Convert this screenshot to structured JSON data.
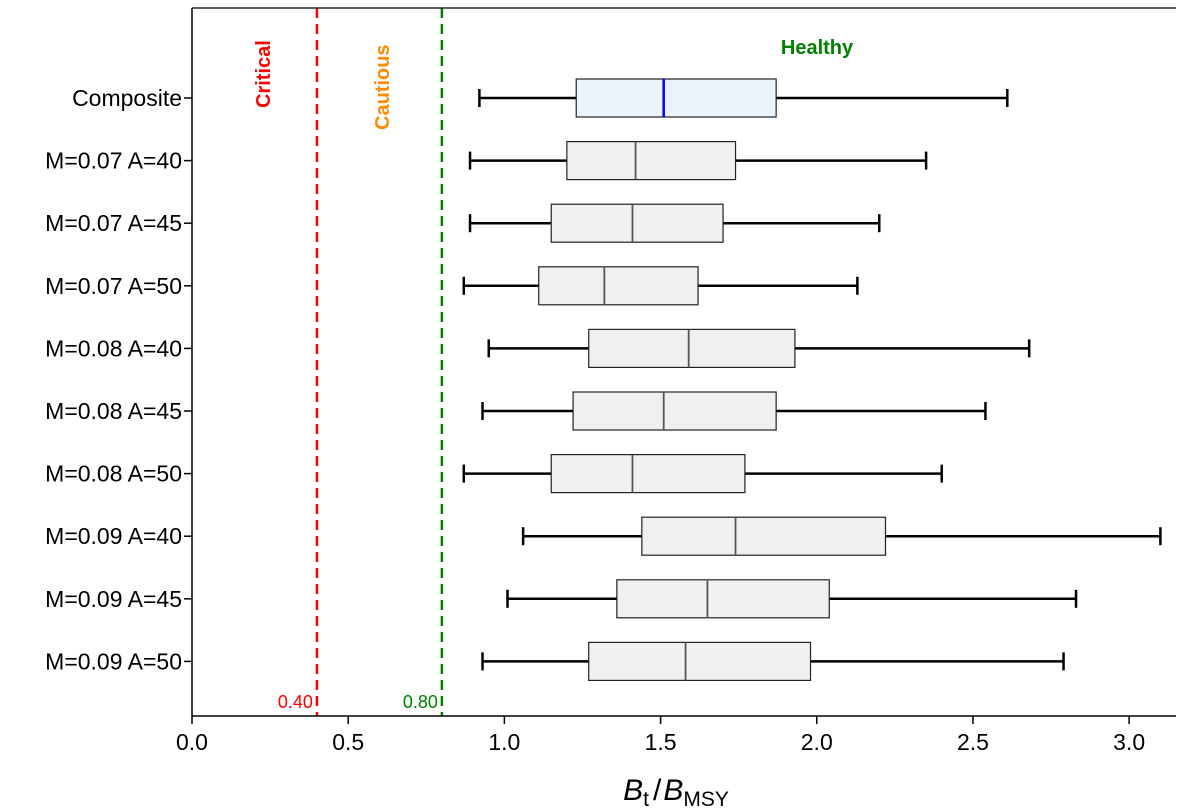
{
  "chart_data": {
    "type": "boxplot",
    "orientation": "horizontal",
    "xlabel_main": "B",
    "xlabel_t": "t",
    "xlabel_slash": "/",
    "xlabel_main2": "B",
    "xlabel_sub": "MSY",
    "xlim": [
      0.0,
      3.15
    ],
    "xticks": [
      "0.0",
      "0.5",
      "1.0",
      "1.5",
      "2.0",
      "2.5",
      "3.0"
    ],
    "xtick_values": [
      0.0,
      0.5,
      1.0,
      1.5,
      2.0,
      2.5,
      3.0
    ],
    "zones": [
      {
        "label": "Critical",
        "color": "#ff0000"
      },
      {
        "label": "Cautious",
        "color": "#ff8c00"
      },
      {
        "label": "Healthy",
        "color": "#008000"
      }
    ],
    "reference_lines": [
      {
        "value": 0.4,
        "label": "0.40",
        "color": "#ff0000"
      },
      {
        "value": 0.8,
        "label": "0.80",
        "color": "#008000"
      }
    ],
    "series": [
      {
        "category": "Composite",
        "whisker_low": 0.92,
        "q1": 1.23,
        "median": 1.51,
        "q3": 1.87,
        "whisker_high": 2.61,
        "fill": "#eaf4fd",
        "median_color": "#0000ff"
      },
      {
        "category": "M=0.07 A=40",
        "whisker_low": 0.89,
        "q1": 1.2,
        "median": 1.42,
        "q3": 1.74,
        "whisker_high": 2.35,
        "fill": "#f0f0f0",
        "median_color": "#555555"
      },
      {
        "category": "M=0.07 A=45",
        "whisker_low": 0.89,
        "q1": 1.15,
        "median": 1.41,
        "q3": 1.7,
        "whisker_high": 2.2,
        "fill": "#f0f0f0",
        "median_color": "#555555"
      },
      {
        "category": "M=0.07 A=50",
        "whisker_low": 0.87,
        "q1": 1.11,
        "median": 1.32,
        "q3": 1.62,
        "whisker_high": 2.13,
        "fill": "#f0f0f0",
        "median_color": "#555555"
      },
      {
        "category": "M=0.08 A=40",
        "whisker_low": 0.95,
        "q1": 1.27,
        "median": 1.59,
        "q3": 1.93,
        "whisker_high": 2.68,
        "fill": "#f0f0f0",
        "median_color": "#555555"
      },
      {
        "category": "M=0.08 A=45",
        "whisker_low": 0.93,
        "q1": 1.22,
        "median": 1.51,
        "q3": 1.87,
        "whisker_high": 2.54,
        "fill": "#f0f0f0",
        "median_color": "#555555"
      },
      {
        "category": "M=0.08 A=50",
        "whisker_low": 0.87,
        "q1": 1.15,
        "median": 1.41,
        "q3": 1.77,
        "whisker_high": 2.4,
        "fill": "#f0f0f0",
        "median_color": "#555555"
      },
      {
        "category": "M=0.09 A=40",
        "whisker_low": 1.06,
        "q1": 1.44,
        "median": 1.74,
        "q3": 2.22,
        "whisker_high": 3.1,
        "fill": "#f0f0f0",
        "median_color": "#555555"
      },
      {
        "category": "M=0.09 A=45",
        "whisker_low": 1.01,
        "q1": 1.36,
        "median": 1.65,
        "q3": 2.04,
        "whisker_high": 2.83,
        "fill": "#f0f0f0",
        "median_color": "#555555"
      },
      {
        "category": "M=0.09 A=50",
        "whisker_low": 0.93,
        "q1": 1.27,
        "median": 1.58,
        "q3": 1.98,
        "whisker_high": 2.79,
        "fill": "#f0f0f0",
        "median_color": "#555555"
      }
    ]
  }
}
